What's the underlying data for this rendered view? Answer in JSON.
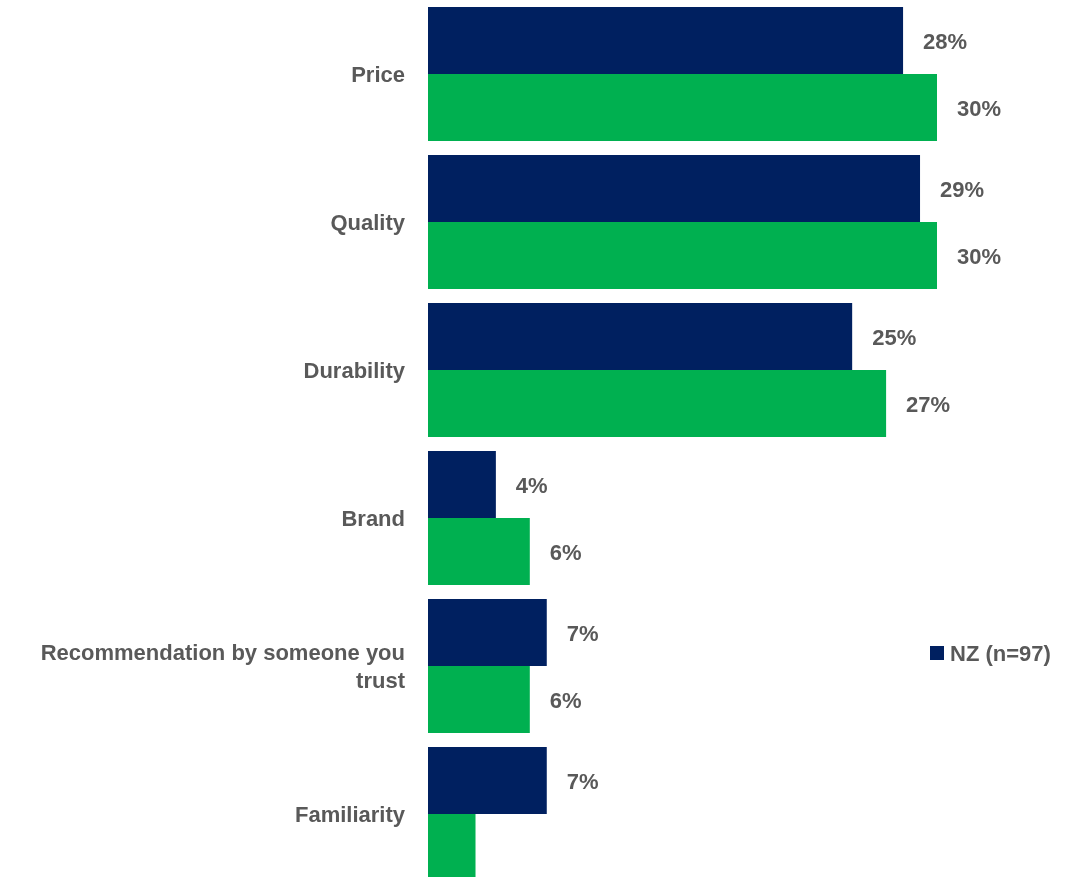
{
  "chart_data": {
    "type": "bar",
    "orientation": "horizontal",
    "categories": [
      "Price",
      "Quality",
      "Durability",
      "Brand",
      "Recommendation by someone you trust",
      "Familiarity"
    ],
    "series": [
      {
        "name": "NZ (n=97)",
        "color": "#002060",
        "values": [
          28,
          29,
          25,
          4,
          7,
          7
        ],
        "value_labels": [
          "28%",
          "29%",
          "25%",
          "4%",
          "7%",
          "7%"
        ]
      },
      {
        "color": "#00b050",
        "values": [
          30,
          30,
          27,
          6,
          6,
          2.8
        ],
        "value_labels": [
          "30%",
          "30%",
          "27%",
          "6%",
          "6%",
          null
        ]
      }
    ],
    "legend": "right"
  }
}
